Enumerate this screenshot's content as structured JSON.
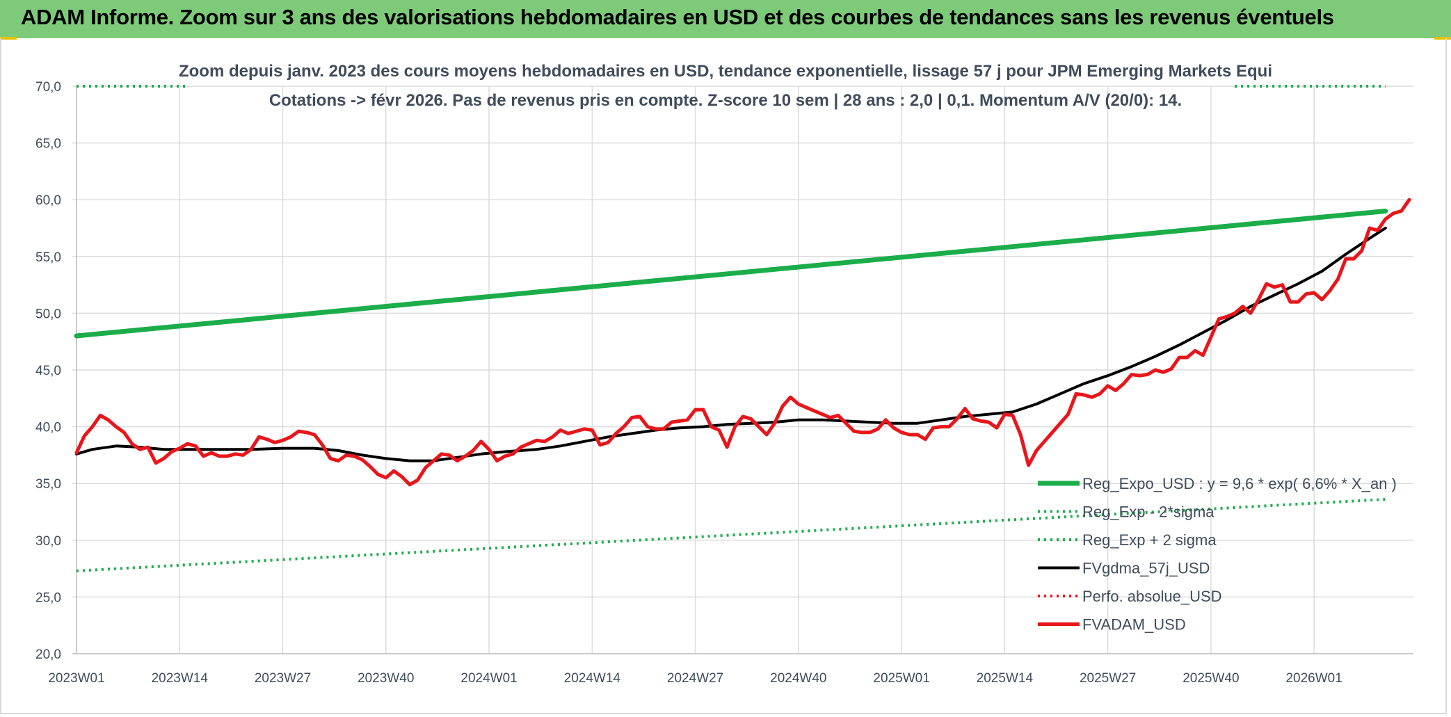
{
  "header": {
    "title": "ADAM Informe. Zoom sur 3 ans des valorisations hebdomadaires en USD et des courbes de tendances sans les revenus éventuels"
  },
  "colors": {
    "header_bg": "#7dcb79",
    "green": "#1aad4a",
    "red": "#e8161b",
    "black": "#000000",
    "grid": "#dcdcdc",
    "text": "#404c5c"
  },
  "chart_data": {
    "type": "line",
    "title_lines": [
      "Zoom depuis janv. 2023 des cours moyens hebdomadaires en USD, tendance exponentielle, lissage 57 j pour JPM Emerging Markets Equi",
      "Cotations -> févr 2026. Pas de revenus pris en compte. Z-score 10 sem | 28 ans : 2,0 | 0,1. Momentum A/V (20/0): 14."
    ],
    "ylim": [
      20,
      70
    ],
    "y_ticks": [
      "20,0",
      "25,0",
      "30,0",
      "35,0",
      "40,0",
      "45,0",
      "50,0",
      "55,0",
      "60,0",
      "65,0",
      "70,0"
    ],
    "x_ticks": [
      "2023W01",
      "2023W14",
      "2023W27",
      "2023W40",
      "2024W01",
      "2024W14",
      "2024W27",
      "2024W40",
      "2025W01",
      "2025W14",
      "2025W27",
      "2025W40",
      "2026W01"
    ],
    "x_weeks": 165,
    "grid": true,
    "legend_position": "bottom-right",
    "series": [
      {
        "name": "Reg_Expo_USD : y = 9,6 * exp( 6,6% *  X_an )",
        "style": "solid-thick",
        "color": "#1aad4a",
        "points": [
          [
            0,
            48.0
          ],
          [
            165,
            59.0
          ]
        ]
      },
      {
        "name": "Reg_Exp - 2*sigma",
        "style": "dotted",
        "color": "#1aad4a",
        "points": [
          [
            0,
            27.3
          ],
          [
            165,
            33.6
          ]
        ]
      },
      {
        "name": "Reg_Exp + 2 sigma",
        "style": "dotted",
        "color": "#1aad4a",
        "points": [
          [
            0,
            70.0
          ],
          [
            14,
            70.0
          ]
        ],
        "points2": [
          [
            146,
            70.0
          ],
          [
            165,
            70.0
          ]
        ]
      },
      {
        "name": "FVgdma_57j_USD",
        "style": "solid",
        "color": "#000000",
        "points": [
          [
            0,
            37.6
          ],
          [
            2,
            38.0
          ],
          [
            5,
            38.3
          ],
          [
            8,
            38.2
          ],
          [
            11,
            38.0
          ],
          [
            14,
            38.0
          ],
          [
            18,
            38.0
          ],
          [
            22,
            38.0
          ],
          [
            26,
            38.1
          ],
          [
            30,
            38.1
          ],
          [
            33,
            37.9
          ],
          [
            36,
            37.5
          ],
          [
            39,
            37.2
          ],
          [
            42,
            37.0
          ],
          [
            45,
            37.0
          ],
          [
            48,
            37.3
          ],
          [
            51,
            37.6
          ],
          [
            54,
            37.8
          ],
          [
            58,
            38.0
          ],
          [
            61,
            38.3
          ],
          [
            64,
            38.7
          ],
          [
            67,
            39.1
          ],
          [
            70,
            39.4
          ],
          [
            73,
            39.7
          ],
          [
            76,
            39.9
          ],
          [
            79,
            40.0
          ],
          [
            82,
            40.2
          ],
          [
            85,
            40.3
          ],
          [
            88,
            40.4
          ],
          [
            91,
            40.6
          ],
          [
            94,
            40.6
          ],
          [
            97,
            40.5
          ],
          [
            100,
            40.4
          ],
          [
            103,
            40.3
          ],
          [
            106,
            40.3
          ],
          [
            109,
            40.6
          ],
          [
            112,
            40.9
          ],
          [
            115,
            41.1
          ],
          [
            118,
            41.3
          ],
          [
            121,
            42.0
          ],
          [
            124,
            42.9
          ],
          [
            127,
            43.8
          ],
          [
            130,
            44.5
          ],
          [
            133,
            45.3
          ],
          [
            136,
            46.2
          ],
          [
            139,
            47.2
          ],
          [
            142,
            48.3
          ],
          [
            145,
            49.4
          ],
          [
            148,
            50.6
          ],
          [
            151,
            51.6
          ],
          [
            154,
            52.6
          ],
          [
            157,
            53.7
          ],
          [
            160,
            55.2
          ],
          [
            163,
            56.6
          ],
          [
            165,
            57.5
          ]
        ]
      },
      {
        "name": "Perfo. absolue_USD",
        "style": "dotted",
        "color": "#e8161b",
        "points": []
      },
      {
        "name": "FVADAM_USD",
        "style": "solid-thick",
        "color": "#e8161b",
        "points": [
          [
            0,
            37.7
          ],
          [
            1,
            39.2
          ],
          [
            2,
            40.0
          ],
          [
            3,
            41.0
          ],
          [
            4,
            40.6
          ],
          [
            5,
            40.0
          ],
          [
            6,
            39.5
          ],
          [
            7,
            38.5
          ],
          [
            8,
            38.0
          ],
          [
            9,
            38.2
          ],
          [
            10,
            36.8
          ],
          [
            11,
            37.2
          ],
          [
            12,
            37.8
          ],
          [
            13,
            38.1
          ],
          [
            14,
            38.5
          ],
          [
            15,
            38.3
          ],
          [
            16,
            37.4
          ],
          [
            17,
            37.7
          ],
          [
            18,
            37.4
          ],
          [
            19,
            37.4
          ],
          [
            20,
            37.6
          ],
          [
            21,
            37.5
          ],
          [
            22,
            38.0
          ],
          [
            23,
            39.1
          ],
          [
            24,
            38.9
          ],
          [
            25,
            38.6
          ],
          [
            26,
            38.8
          ],
          [
            27,
            39.1
          ],
          [
            28,
            39.6
          ],
          [
            29,
            39.5
          ],
          [
            30,
            39.3
          ],
          [
            31,
            38.4
          ],
          [
            32,
            37.2
          ],
          [
            33,
            37.0
          ],
          [
            34,
            37.5
          ],
          [
            35,
            37.4
          ],
          [
            36,
            37.1
          ],
          [
            37,
            36.5
          ],
          [
            38,
            35.8
          ],
          [
            39,
            35.5
          ],
          [
            40,
            36.1
          ],
          [
            41,
            35.6
          ],
          [
            42,
            34.9
          ],
          [
            43,
            35.3
          ],
          [
            44,
            36.4
          ],
          [
            45,
            37.0
          ],
          [
            46,
            37.6
          ],
          [
            47,
            37.5
          ],
          [
            48,
            37.0
          ],
          [
            49,
            37.4
          ],
          [
            50,
            37.9
          ],
          [
            51,
            38.7
          ],
          [
            52,
            38.0
          ],
          [
            53,
            37.0
          ],
          [
            54,
            37.4
          ],
          [
            55,
            37.6
          ],
          [
            56,
            38.2
          ],
          [
            57,
            38.5
          ],
          [
            58,
            38.8
          ],
          [
            59,
            38.7
          ],
          [
            60,
            39.1
          ],
          [
            61,
            39.7
          ],
          [
            62,
            39.4
          ],
          [
            63,
            39.6
          ],
          [
            64,
            39.8
          ],
          [
            65,
            39.7
          ],
          [
            66,
            38.4
          ],
          [
            67,
            38.6
          ],
          [
            68,
            39.4
          ],
          [
            69,
            40.0
          ],
          [
            70,
            40.8
          ],
          [
            71,
            40.9
          ],
          [
            72,
            40.0
          ],
          [
            73,
            39.8
          ],
          [
            74,
            39.8
          ],
          [
            75,
            40.4
          ],
          [
            76,
            40.5
          ],
          [
            77,
            40.6
          ],
          [
            78,
            41.5
          ],
          [
            79,
            41.5
          ],
          [
            80,
            40.0
          ],
          [
            81,
            39.7
          ],
          [
            82,
            38.2
          ],
          [
            83,
            40.0
          ],
          [
            84,
            40.9
          ],
          [
            85,
            40.7
          ],
          [
            86,
            40.0
          ],
          [
            87,
            39.3
          ],
          [
            88,
            40.3
          ],
          [
            89,
            41.8
          ],
          [
            90,
            42.6
          ],
          [
            91,
            42.0
          ],
          [
            92,
            41.7
          ],
          [
            93,
            41.4
          ],
          [
            94,
            41.1
          ],
          [
            95,
            40.8
          ],
          [
            96,
            41.0
          ],
          [
            97,
            40.3
          ],
          [
            98,
            39.6
          ],
          [
            99,
            39.5
          ],
          [
            100,
            39.5
          ],
          [
            101,
            39.8
          ],
          [
            102,
            40.6
          ],
          [
            103,
            39.9
          ],
          [
            104,
            39.5
          ],
          [
            105,
            39.3
          ],
          [
            106,
            39.3
          ],
          [
            107,
            38.9
          ],
          [
            108,
            39.9
          ],
          [
            109,
            40.0
          ],
          [
            110,
            40.0
          ],
          [
            111,
            40.7
          ],
          [
            112,
            41.6
          ],
          [
            113,
            40.7
          ],
          [
            114,
            40.5
          ],
          [
            115,
            40.4
          ],
          [
            116,
            39.9
          ],
          [
            117,
            41.1
          ],
          [
            118,
            41.0
          ],
          [
            119,
            39.3
          ],
          [
            120,
            36.6
          ],
          [
            121,
            37.9
          ],
          [
            122,
            38.7
          ],
          [
            123,
            39.5
          ],
          [
            124,
            40.3
          ],
          [
            125,
            41.1
          ],
          [
            126,
            42.9
          ],
          [
            127,
            42.8
          ],
          [
            128,
            42.6
          ],
          [
            129,
            42.9
          ],
          [
            130,
            43.6
          ],
          [
            131,
            43.2
          ],
          [
            132,
            43.8
          ],
          [
            133,
            44.6
          ],
          [
            134,
            44.5
          ],
          [
            135,
            44.6
          ],
          [
            136,
            45.0
          ],
          [
            137,
            44.8
          ],
          [
            138,
            45.1
          ],
          [
            139,
            46.1
          ],
          [
            140,
            46.1
          ],
          [
            141,
            46.7
          ],
          [
            142,
            46.3
          ],
          [
            143,
            47.9
          ],
          [
            144,
            49.5
          ],
          [
            145,
            49.7
          ],
          [
            146,
            50.0
          ],
          [
            147,
            50.6
          ],
          [
            148,
            50.0
          ],
          [
            149,
            51.2
          ],
          [
            150,
            52.6
          ],
          [
            151,
            52.3
          ],
          [
            152,
            52.5
          ],
          [
            153,
            51.0
          ],
          [
            154,
            51.0
          ],
          [
            155,
            51.7
          ],
          [
            156,
            51.8
          ],
          [
            157,
            51.2
          ],
          [
            158,
            52.0
          ],
          [
            159,
            53.0
          ],
          [
            160,
            54.8
          ],
          [
            161,
            54.8
          ],
          [
            162,
            55.5
          ],
          [
            163,
            57.5
          ],
          [
            164,
            57.3
          ],
          [
            165,
            58.3
          ],
          [
            166,
            58.8
          ],
          [
            167,
            59.0
          ],
          [
            168,
            60.0
          ]
        ]
      }
    ]
  }
}
